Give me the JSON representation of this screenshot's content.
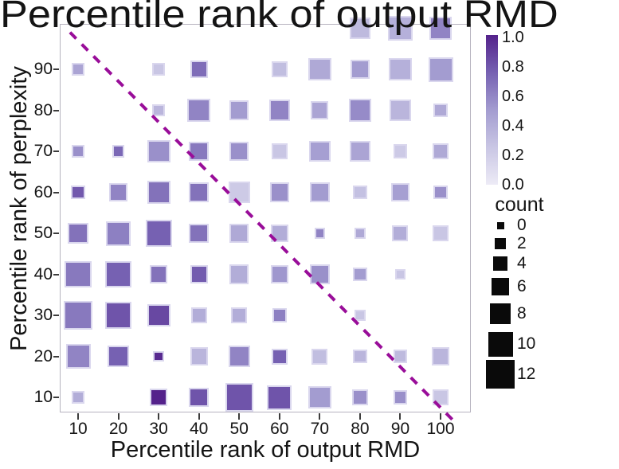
{
  "title": "Percentile rank of output RMD",
  "x_axis": {
    "label": "Percentile rank of output RMD",
    "ticks": [
      10,
      20,
      30,
      40,
      50,
      60,
      70,
      80,
      90,
      100
    ]
  },
  "y_axis": {
    "label": "Percentile rank of perplexity",
    "ticks": [
      90,
      80,
      70,
      60,
      50,
      40,
      30,
      20,
      10
    ]
  },
  "colorbar": {
    "tick_labels": [
      "1.0",
      "0.8",
      "0.6",
      "0.4",
      "0.2",
      "0.0"
    ],
    "top_color": "#54228b",
    "bottom_color": "#edebf6"
  },
  "size_legend": {
    "title": "count",
    "entries": [
      0,
      2,
      4,
      6,
      8,
      10,
      12
    ]
  },
  "diagonal_line": {
    "color": "#990d99",
    "style": "dashed",
    "start": {
      "x": 8,
      "y": 99
    },
    "end": {
      "x": 103,
      "y": 4.5
    }
  },
  "chart_data": {
    "type": "scatter",
    "title": "Percentile rank of output RMD",
    "xlabel": "Percentile rank of output RMD",
    "ylabel": "Percentile rank of perplexity",
    "x_range": [
      5,
      105
    ],
    "y_range": [
      5,
      105
    ],
    "grid": false,
    "legend_position": "right",
    "size_encoding": "count (legend 0-12)",
    "color_encoding": "fraction 0.0-1.0 (purple colormap)",
    "points": [
      {
        "x": 80,
        "y": 100,
        "count": 8,
        "value": 0.32
      },
      {
        "x": 90,
        "y": 100,
        "count": 10,
        "value": 0.38
      },
      {
        "x": 100,
        "y": 100,
        "count": 9,
        "value": 0.6
      },
      {
        "x": 10,
        "y": 90,
        "count": 3,
        "value": 0.45
      },
      {
        "x": 30,
        "y": 90,
        "count": 3,
        "value": 0.25
      },
      {
        "x": 40,
        "y": 90,
        "count": 6,
        "value": 0.7
      },
      {
        "x": 60,
        "y": 90,
        "count": 5,
        "value": 0.3
      },
      {
        "x": 70,
        "y": 90,
        "count": 9,
        "value": 0.42
      },
      {
        "x": 80,
        "y": 90,
        "count": 7,
        "value": 0.5
      },
      {
        "x": 90,
        "y": 90,
        "count": 9,
        "value": 0.38
      },
      {
        "x": 100,
        "y": 90,
        "count": 10,
        "value": 0.5
      },
      {
        "x": 30,
        "y": 80,
        "count": 3,
        "value": 0.35
      },
      {
        "x": 40,
        "y": 80,
        "count": 9,
        "value": 0.6
      },
      {
        "x": 50,
        "y": 80,
        "count": 7,
        "value": 0.5
      },
      {
        "x": 60,
        "y": 80,
        "count": 8,
        "value": 0.6
      },
      {
        "x": 70,
        "y": 80,
        "count": 6,
        "value": 0.45
      },
      {
        "x": 80,
        "y": 80,
        "count": 9,
        "value": 0.57
      },
      {
        "x": 90,
        "y": 80,
        "count": 8,
        "value": 0.35
      },
      {
        "x": 100,
        "y": 80,
        "count": 4,
        "value": 0.42
      },
      {
        "x": 10,
        "y": 70,
        "count": 3,
        "value": 0.55
      },
      {
        "x": 20,
        "y": 70,
        "count": 3,
        "value": 0.72
      },
      {
        "x": 30,
        "y": 70,
        "count": 9,
        "value": 0.55
      },
      {
        "x": 40,
        "y": 70,
        "count": 7,
        "value": 0.65
      },
      {
        "x": 50,
        "y": 70,
        "count": 7,
        "value": 0.55
      },
      {
        "x": 60,
        "y": 70,
        "count": 5,
        "value": 0.25
      },
      {
        "x": 70,
        "y": 70,
        "count": 8,
        "value": 0.48
      },
      {
        "x": 80,
        "y": 70,
        "count": 8,
        "value": 0.45
      },
      {
        "x": 90,
        "y": 70,
        "count": 4,
        "value": 0.22
      },
      {
        "x": 100,
        "y": 70,
        "count": 5,
        "value": 0.42
      },
      {
        "x": 10,
        "y": 60,
        "count": 4,
        "value": 0.78
      },
      {
        "x": 20,
        "y": 60,
        "count": 6,
        "value": 0.6
      },
      {
        "x": 30,
        "y": 60,
        "count": 9,
        "value": 0.68
      },
      {
        "x": 40,
        "y": 60,
        "count": 7,
        "value": 0.68
      },
      {
        "x": 50,
        "y": 60,
        "count": 8,
        "value": 0.22
      },
      {
        "x": 60,
        "y": 60,
        "count": 7,
        "value": 0.55
      },
      {
        "x": 70,
        "y": 60,
        "count": 7,
        "value": 0.5
      },
      {
        "x": 80,
        "y": 60,
        "count": 4,
        "value": 0.28
      },
      {
        "x": 90,
        "y": 60,
        "count": 6,
        "value": 0.48
      },
      {
        "x": 100,
        "y": 60,
        "count": 4,
        "value": 0.55
      },
      {
        "x": 10,
        "y": 50,
        "count": 8,
        "value": 0.68
      },
      {
        "x": 20,
        "y": 50,
        "count": 10,
        "value": 0.62
      },
      {
        "x": 30,
        "y": 50,
        "count": 11,
        "value": 0.75
      },
      {
        "x": 40,
        "y": 50,
        "count": 7,
        "value": 0.68
      },
      {
        "x": 50,
        "y": 50,
        "count": 7,
        "value": 0.42
      },
      {
        "x": 60,
        "y": 50,
        "count": 6,
        "value": 0.4
      },
      {
        "x": 70,
        "y": 50,
        "count": 2,
        "value": 0.6
      },
      {
        "x": 80,
        "y": 50,
        "count": 2,
        "value": 0.42
      },
      {
        "x": 90,
        "y": 50,
        "count": 5,
        "value": 0.4
      },
      {
        "x": 100,
        "y": 50,
        "count": 5,
        "value": 0.25
      },
      {
        "x": 10,
        "y": 40,
        "count": 11,
        "value": 0.65
      },
      {
        "x": 20,
        "y": 40,
        "count": 11,
        "value": 0.75
      },
      {
        "x": 30,
        "y": 40,
        "count": 6,
        "value": 0.68
      },
      {
        "x": 40,
        "y": 40,
        "count": 6,
        "value": 0.77
      },
      {
        "x": 50,
        "y": 40,
        "count": 7,
        "value": 0.4
      },
      {
        "x": 60,
        "y": 40,
        "count": 6,
        "value": 0.52
      },
      {
        "x": 70,
        "y": 40,
        "count": 7,
        "value": 0.55
      },
      {
        "x": 80,
        "y": 40,
        "count": 4,
        "value": 0.5
      },
      {
        "x": 90,
        "y": 40,
        "count": 2,
        "value": 0.25
      },
      {
        "x": 10,
        "y": 30,
        "count": 12,
        "value": 0.65
      },
      {
        "x": 20,
        "y": 30,
        "count": 11,
        "value": 0.8
      },
      {
        "x": 30,
        "y": 30,
        "count": 9,
        "value": 0.85
      },
      {
        "x": 40,
        "y": 30,
        "count": 5,
        "value": 0.4
      },
      {
        "x": 50,
        "y": 30,
        "count": 5,
        "value": 0.4
      },
      {
        "x": 60,
        "y": 30,
        "count": 4,
        "value": 0.62
      },
      {
        "x": 80,
        "y": 30,
        "count": 2,
        "value": 0.25
      },
      {
        "x": 10,
        "y": 20,
        "count": 10,
        "value": 0.6
      },
      {
        "x": 20,
        "y": 20,
        "count": 8,
        "value": 0.75
      },
      {
        "x": 30,
        "y": 20,
        "count": 2,
        "value": 0.97
      },
      {
        "x": 40,
        "y": 20,
        "count": 6,
        "value": 0.35
      },
      {
        "x": 50,
        "y": 20,
        "count": 8,
        "value": 0.6
      },
      {
        "x": 60,
        "y": 20,
        "count": 5,
        "value": 0.75
      },
      {
        "x": 70,
        "y": 20,
        "count": 5,
        "value": 0.3
      },
      {
        "x": 80,
        "y": 20,
        "count": 4,
        "value": 0.35
      },
      {
        "x": 90,
        "y": 20,
        "count": 4,
        "value": 0.32
      },
      {
        "x": 100,
        "y": 20,
        "count": 6,
        "value": 0.35
      },
      {
        "x": 10,
        "y": 10,
        "count": 3,
        "value": 0.4
      },
      {
        "x": 30,
        "y": 10,
        "count": 6,
        "value": 1.0
      },
      {
        "x": 40,
        "y": 10,
        "count": 7,
        "value": 0.8
      },
      {
        "x": 50,
        "y": 10,
        "count": 12,
        "value": 0.8
      },
      {
        "x": 60,
        "y": 10,
        "count": 10,
        "value": 0.8
      },
      {
        "x": 70,
        "y": 10,
        "count": 9,
        "value": 0.5
      },
      {
        "x": 80,
        "y": 10,
        "count": 5,
        "value": 0.55
      },
      {
        "x": 90,
        "y": 10,
        "count": 4,
        "value": 0.55
      },
      {
        "x": 100,
        "y": 10,
        "count": 5,
        "value": 0.25
      }
    ]
  }
}
